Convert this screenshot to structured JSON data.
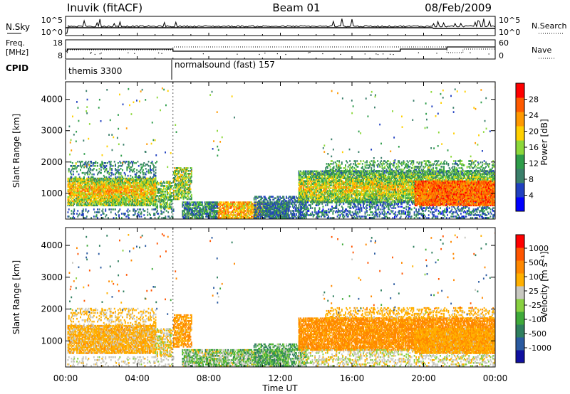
{
  "header": {
    "station": "Inuvik (fitACF)",
    "beam": "Beam 01",
    "date": "08/Feb/2009"
  },
  "nsky_panel": {
    "left_label": "N.Sky",
    "right_label": "N.Search",
    "y_ticks": [
      "10^5",
      "10^0"
    ]
  },
  "freq_panel": {
    "left_label_top": "Freq.",
    "left_label_bottom": "[MHz]",
    "right_label": "Nave",
    "left_ticks": [
      "18",
      "8"
    ],
    "right_ticks": [
      "60",
      "0"
    ]
  },
  "cpid_panel": {
    "label": "CPID",
    "modes": [
      {
        "start": "00:00",
        "name": "themis 3300"
      },
      {
        "start": "06:00",
        "name": "normalsound (fast) 157"
      }
    ]
  },
  "colors": {
    "power_scale": [
      "#0000ff",
      "#2040c0",
      "#3a7f6a",
      "#2e9d4a",
      "#8cd83a",
      "#ffd000",
      "#ff9900",
      "#ff5a00",
      "#ff0000"
    ],
    "velocity_scale": [
      "#1010a0",
      "#2a5aa0",
      "#2f7f5f",
      "#3faa3a",
      "#88d040",
      "#c8c8c0",
      "#ffb000",
      "#ff8800",
      "#ff5500",
      "#ff0000"
    ]
  },
  "chart_data": [
    {
      "type": "heatmap",
      "name": "power",
      "xlabel": "",
      "ylabel": "Slant Range [km]",
      "x_ticks": [
        "00:00",
        "04:00",
        "08:00",
        "12:00",
        "16:00",
        "20:00",
        "00:00"
      ],
      "xlim": [
        0,
        24
      ],
      "y_ticks": [
        1000,
        2000,
        3000,
        4000
      ],
      "ylim": [
        180,
        4560
      ],
      "colorbar_label": "Power [dB]",
      "colorbar_ticks": [
        "4",
        "8",
        "12",
        "16",
        "20",
        "24",
        "28"
      ],
      "colorbar_range": [
        0,
        32
      ]
    },
    {
      "type": "heatmap",
      "name": "velocity",
      "xlabel": "Time UT",
      "ylabel": "Slant Range [km]",
      "x_ticks": [
        "00:00",
        "04:00",
        "08:00",
        "12:00",
        "16:00",
        "20:00",
        "00:00"
      ],
      "xlim": [
        0,
        24
      ],
      "y_ticks": [
        1000,
        2000,
        3000,
        4000
      ],
      "ylim": [
        180,
        4560
      ],
      "colorbar_label": "Velocity [m s⁻¹]",
      "colorbar_ticks": [
        "1000",
        "500",
        "100",
        "25",
        "-25",
        "-100",
        "-500",
        "-1000"
      ]
    }
  ]
}
